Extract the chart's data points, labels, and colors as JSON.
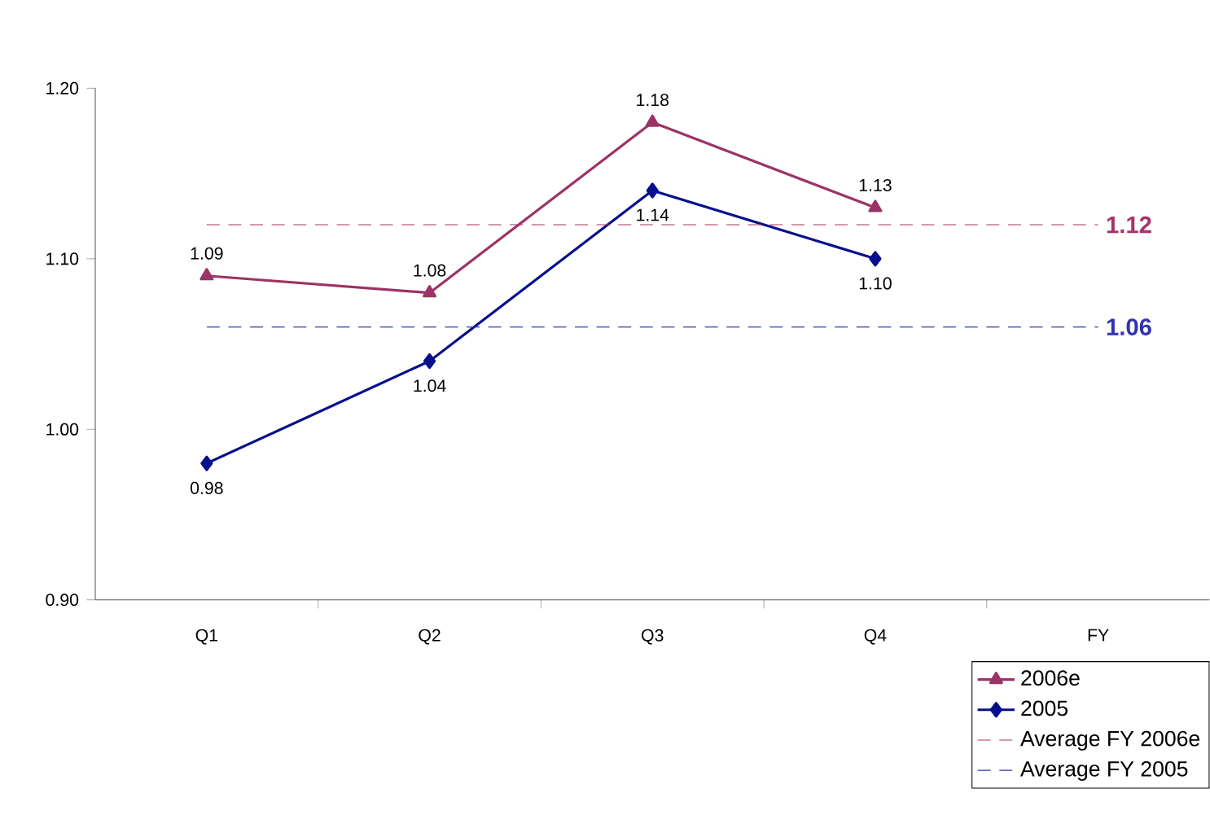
{
  "chart_data": {
    "type": "line",
    "categories": [
      "Q1",
      "Q2",
      "Q3",
      "Q4",
      "FY"
    ],
    "ylim": [
      0.9,
      1.2
    ],
    "yticks": [
      {
        "value": 0.9,
        "label": "0.90"
      },
      {
        "value": 1.0,
        "label": "1.00"
      },
      {
        "value": 1.1,
        "label": "1.10"
      },
      {
        "value": 1.2,
        "label": "1.20"
      }
    ],
    "legend": "bottom right",
    "grid": false,
    "series": [
      {
        "name": "2006e",
        "color": "#9c3366",
        "marker": "triangle",
        "line_style": "solid",
        "values": [
          1.09,
          1.08,
          1.18,
          1.13,
          null
        ],
        "value_labels": [
          "1.09",
          "1.08",
          "1.18",
          "1.13",
          null
        ]
      },
      {
        "name": "2005",
        "color": "#06108c",
        "marker": "diamond",
        "line_style": "solid",
        "values": [
          0.98,
          1.04,
          1.14,
          1.1,
          null
        ],
        "value_labels": [
          "0.98",
          "1.04",
          "1.14",
          "1.10",
          null
        ]
      },
      {
        "name": "Average FY 2006e",
        "color": "#a8336a",
        "marker": "none",
        "line_style": "dashed",
        "values": [
          1.12,
          1.12,
          1.12,
          1.12,
          1.12
        ],
        "value_labels": [
          null,
          null,
          null,
          null,
          "1.12"
        ]
      },
      {
        "name": "Average FY 2005",
        "color": "#3333b0",
        "marker": "none",
        "line_style": "dashed",
        "values": [
          1.06,
          1.06,
          1.06,
          1.06,
          1.06
        ],
        "value_labels": [
          null,
          null,
          null,
          null,
          "1.06"
        ]
      }
    ]
  }
}
